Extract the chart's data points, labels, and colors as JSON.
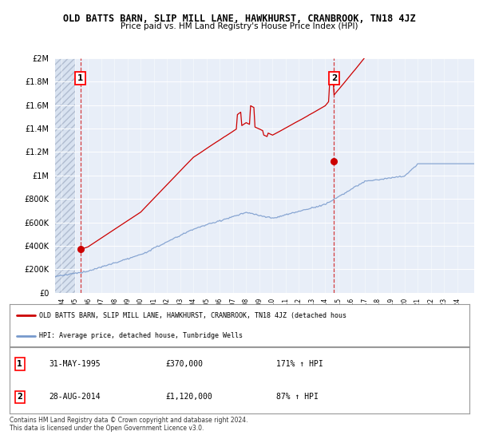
{
  "title": "OLD BATTS BARN, SLIP MILL LANE, HAWKHURST, CRANBROOK, TN18 4JZ",
  "subtitle": "Price paid vs. HM Land Registry's House Price Index (HPI)",
  "red_line_color": "#cc0000",
  "blue_line_color": "#7799cc",
  "plot_bg_color": "#e8eef8",
  "hatch_bg_color": "#d8e2f0",
  "grid_color": "#ffffff",
  "point1_year": 1995.42,
  "point1_value": 370000,
  "point2_year": 2014.66,
  "point2_value": 1120000,
  "legend_red_label": "OLD BATTS BARN, SLIP MILL LANE, HAWKHURST, CRANBROOK, TN18 4JZ (detached hous",
  "legend_blue_label": "HPI: Average price, detached house, Tunbridge Wells",
  "annotation1_label": "1",
  "annotation1_date": "31-MAY-1995",
  "annotation1_price": "£370,000",
  "annotation1_hpi": "171% ↑ HPI",
  "annotation2_label": "2",
  "annotation2_date": "28-AUG-2014",
  "annotation2_price": "£1,120,000",
  "annotation2_hpi": "87% ↑ HPI",
  "footer": "Contains HM Land Registry data © Crown copyright and database right 2024.\nThis data is licensed under the Open Government Licence v3.0.",
  "ylim": [
    0,
    2000000
  ],
  "xlim_start": 1993.5,
  "xlim_end": 2025.3
}
